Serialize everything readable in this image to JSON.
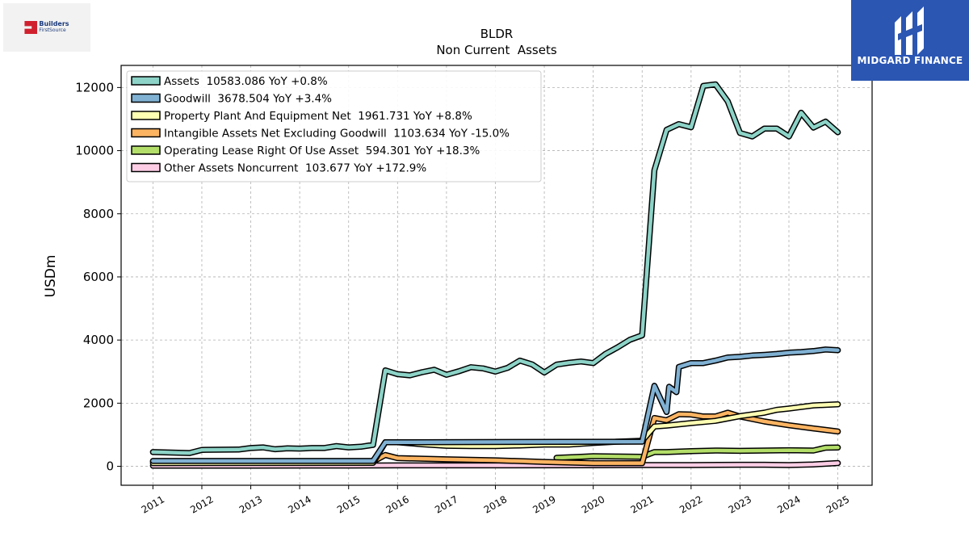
{
  "brand_left": {
    "line1": "Builders",
    "line2": "FirstSource"
  },
  "brand_right": {
    "name": "MIDGARD FINANCE"
  },
  "chart_data": {
    "type": "line",
    "title": "BLDR",
    "subtitle": "Non Current  Assets",
    "ylabel": "USDm",
    "xlabel": "",
    "ylim": [
      -600,
      12700
    ],
    "xlim": [
      2010.35,
      2025.7
    ],
    "yticks": [
      0,
      2000,
      4000,
      6000,
      8000,
      10000,
      12000
    ],
    "xticks": [
      "2011",
      "2012",
      "2013",
      "2014",
      "2015",
      "2016",
      "2017",
      "2018",
      "2019",
      "2020",
      "2021",
      "2022",
      "2023",
      "2024",
      "2025"
    ],
    "grid": true,
    "legend_position": "top-left",
    "series": [
      {
        "name": "Assets  10583.086 YoY +0.8%",
        "color": "#8dd3c7",
        "points": [
          [
            2011.0,
            450
          ],
          [
            2011.75,
            420
          ],
          [
            2012.0,
            520
          ],
          [
            2012.75,
            530
          ],
          [
            2013.0,
            580
          ],
          [
            2013.25,
            600
          ],
          [
            2013.5,
            540
          ],
          [
            2013.75,
            570
          ],
          [
            2014.0,
            560
          ],
          [
            2014.25,
            580
          ],
          [
            2014.5,
            580
          ],
          [
            2014.75,
            640
          ],
          [
            2015.0,
            600
          ],
          [
            2015.25,
            620
          ],
          [
            2015.5,
            680
          ],
          [
            2015.75,
            3040
          ],
          [
            2016.0,
            2920
          ],
          [
            2016.25,
            2880
          ],
          [
            2016.5,
            2980
          ],
          [
            2016.75,
            3060
          ],
          [
            2017.0,
            2900
          ],
          [
            2017.25,
            3010
          ],
          [
            2017.5,
            3140
          ],
          [
            2017.75,
            3100
          ],
          [
            2018.0,
            3000
          ],
          [
            2018.25,
            3120
          ],
          [
            2018.5,
            3350
          ],
          [
            2018.75,
            3230
          ],
          [
            2019.0,
            2970
          ],
          [
            2019.25,
            3220
          ],
          [
            2019.5,
            3280
          ],
          [
            2019.75,
            3320
          ],
          [
            2020.0,
            3270
          ],
          [
            2020.25,
            3560
          ],
          [
            2020.5,
            3770
          ],
          [
            2020.75,
            4010
          ],
          [
            2021.0,
            4150
          ],
          [
            2021.25,
            9380
          ],
          [
            2021.5,
            10660
          ],
          [
            2021.75,
            10840
          ],
          [
            2022.0,
            10740
          ],
          [
            2022.25,
            12050
          ],
          [
            2022.5,
            12100
          ],
          [
            2022.75,
            11560
          ],
          [
            2023.0,
            10560
          ],
          [
            2023.25,
            10450
          ],
          [
            2023.5,
            10700
          ],
          [
            2023.75,
            10700
          ],
          [
            2024.0,
            10450
          ],
          [
            2024.25,
            11200
          ],
          [
            2024.5,
            10730
          ],
          [
            2024.75,
            10920
          ],
          [
            2025.0,
            10583
          ]
        ]
      },
      {
        "name": "Goodwill  3678.504 YoY +3.4%",
        "color": "#80b1d3",
        "points": [
          [
            2011.0,
            170
          ],
          [
            2015.5,
            170
          ],
          [
            2015.75,
            760
          ],
          [
            2021.0,
            780
          ],
          [
            2021.25,
            2550
          ],
          [
            2021.5,
            1720
          ],
          [
            2021.55,
            2520
          ],
          [
            2021.7,
            2350
          ],
          [
            2021.75,
            3150
          ],
          [
            2022.0,
            3270
          ],
          [
            2022.25,
            3270
          ],
          [
            2022.5,
            3350
          ],
          [
            2022.75,
            3450
          ],
          [
            2023.0,
            3470
          ],
          [
            2023.25,
            3510
          ],
          [
            2023.5,
            3530
          ],
          [
            2023.75,
            3560
          ],
          [
            2024.0,
            3600
          ],
          [
            2024.25,
            3620
          ],
          [
            2024.5,
            3650
          ],
          [
            2024.75,
            3700
          ],
          [
            2025.0,
            3679
          ]
        ]
      },
      {
        "name": "Property Plant And Equipment Net  1961.731 YoY +8.8%",
        "color": "#ffffb3",
        "points": [
          [
            2011.0,
            100
          ],
          [
            2015.5,
            110
          ],
          [
            2015.75,
            760
          ],
          [
            2016.0,
            760
          ],
          [
            2016.5,
            700
          ],
          [
            2017.0,
            650
          ],
          [
            2017.5,
            640
          ],
          [
            2018.0,
            640
          ],
          [
            2018.5,
            660
          ],
          [
            2019.0,
            690
          ],
          [
            2019.5,
            690
          ],
          [
            2020.0,
            740
          ],
          [
            2020.5,
            780
          ],
          [
            2021.0,
            810
          ],
          [
            2021.25,
            1260
          ],
          [
            2021.5,
            1290
          ],
          [
            2022.0,
            1370
          ],
          [
            2022.5,
            1440
          ],
          [
            2023.0,
            1590
          ],
          [
            2023.5,
            1700
          ],
          [
            2023.75,
            1790
          ],
          [
            2024.0,
            1830
          ],
          [
            2024.5,
            1930
          ],
          [
            2025.0,
            1962
          ]
        ]
      },
      {
        "name": "Intangible Assets Net Excluding Goodwill  1103.634 YoY -15.0%",
        "color": "#fdb462",
        "points": [
          [
            2011.0,
            150
          ],
          [
            2015.5,
            150
          ],
          [
            2015.75,
            360
          ],
          [
            2016.0,
            260
          ],
          [
            2017.0,
            220
          ],
          [
            2018.0,
            190
          ],
          [
            2019.0,
            140
          ],
          [
            2020.0,
            100
          ],
          [
            2021.0,
            100
          ],
          [
            2021.25,
            1530
          ],
          [
            2021.5,
            1460
          ],
          [
            2021.75,
            1650
          ],
          [
            2022.0,
            1640
          ],
          [
            2022.25,
            1580
          ],
          [
            2022.5,
            1580
          ],
          [
            2022.75,
            1700
          ],
          [
            2023.0,
            1580
          ],
          [
            2023.5,
            1420
          ],
          [
            2024.0,
            1300
          ],
          [
            2024.5,
            1200
          ],
          [
            2025.0,
            1104
          ]
        ]
      },
      {
        "name": "Operating Lease Right Of Use Asset  594.301 YoY +18.3%",
        "color": "#b3de69",
        "points": [
          [
            2019.25,
            270
          ],
          [
            2019.75,
            300
          ],
          [
            2020.0,
            320
          ],
          [
            2020.5,
            310
          ],
          [
            2021.0,
            300
          ],
          [
            2021.25,
            450
          ],
          [
            2021.5,
            450
          ],
          [
            2022.0,
            480
          ],
          [
            2022.5,
            500
          ],
          [
            2023.0,
            490
          ],
          [
            2023.5,
            500
          ],
          [
            2024.0,
            510
          ],
          [
            2024.5,
            500
          ],
          [
            2024.75,
            590
          ],
          [
            2025.0,
            594
          ]
        ]
      },
      {
        "name": "Other Assets Noncurrent  103.677 YoY +172.9%",
        "color": "#fccde5",
        "points": [
          [
            2011.0,
            20
          ],
          [
            2013.0,
            20
          ],
          [
            2015.0,
            25
          ],
          [
            2016.0,
            30
          ],
          [
            2018.0,
            30
          ],
          [
            2020.0,
            35
          ],
          [
            2021.0,
            40
          ],
          [
            2022.0,
            40
          ],
          [
            2023.0,
            50
          ],
          [
            2023.5,
            50
          ],
          [
            2024.0,
            40
          ],
          [
            2024.5,
            60
          ],
          [
            2025.0,
            104
          ]
        ]
      }
    ]
  }
}
